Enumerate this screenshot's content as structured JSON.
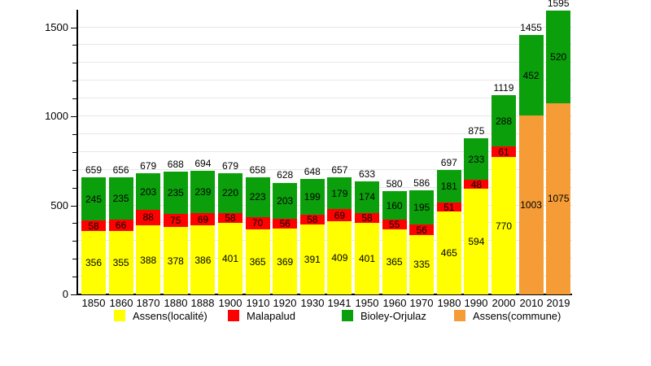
{
  "chart_data": {
    "type": "bar",
    "stacked": true,
    "title": "",
    "xlabel": "",
    "ylabel": "",
    "categories": [
      "1850",
      "1860",
      "1870",
      "1880",
      "1888",
      "1900",
      "1910",
      "1920",
      "1930",
      "1941",
      "1950",
      "1960",
      "1970",
      "1980",
      "1990",
      "2000",
      "2010",
      "2019"
    ],
    "series": [
      {
        "name": "Assens(localité)",
        "color": "#ffff00",
        "values": [
          356,
          355,
          388,
          378,
          386,
          401,
          365,
          369,
          391,
          409,
          401,
          365,
          335,
          465,
          594,
          770,
          0,
          0
        ]
      },
      {
        "name": "Malapalud",
        "color": "#ff0000",
        "values": [
          58,
          66,
          88,
          75,
          69,
          58,
          70,
          56,
          58,
          69,
          58,
          55,
          56,
          51,
          48,
          61,
          0,
          0
        ]
      },
      {
        "name": "Bioley-Orjulaz",
        "color": "#0ba00b",
        "values": [
          245,
          235,
          203,
          235,
          239,
          220,
          223,
          203,
          199,
          179,
          174,
          160,
          195,
          181,
          233,
          288,
          452,
          520
        ]
      },
      {
        "name": "Assens(commune)",
        "color": "#f59c36",
        "values": [
          0,
          0,
          0,
          0,
          0,
          0,
          0,
          0,
          0,
          0,
          0,
          0,
          0,
          0,
          0,
          0,
          1003,
          1075
        ]
      }
    ],
    "stack_order": [
      0,
      1,
      3,
      2
    ],
    "totals": [
      659,
      656,
      679,
      688,
      694,
      679,
      658,
      628,
      648,
      657,
      633,
      580,
      586,
      697,
      875,
      1119,
      1455,
      1595
    ],
    "y_axis": {
      "ticks": [
        0,
        500,
        1000,
        1500
      ],
      "minor_step": 100,
      "minor_max": 1500,
      "range": [
        0,
        1600
      ],
      "grid": true
    },
    "legend": {
      "position": "bottom",
      "entries": [
        "Assens(localité)",
        "Malapalud",
        "Bioley-Orjulaz",
        "Assens(commune)"
      ]
    }
  }
}
